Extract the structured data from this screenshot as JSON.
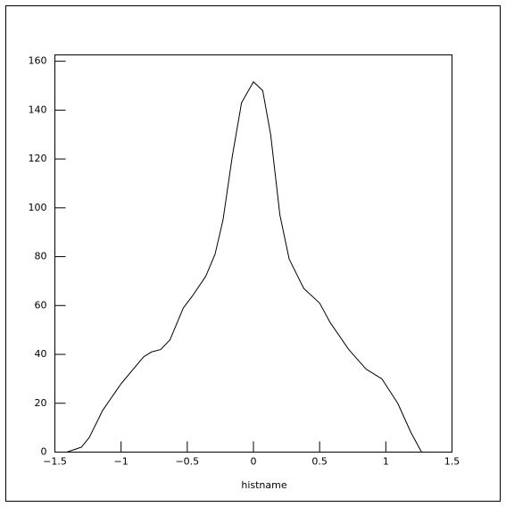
{
  "chart_data": {
    "type": "line",
    "x_label": "histname",
    "x": [
      -1.41,
      -1.3,
      -1.24,
      -1.14,
      -1.0,
      -0.83,
      -0.77,
      -0.7,
      -0.63,
      -0.53,
      -0.46,
      -0.36,
      -0.29,
      -0.23,
      -0.16,
      -0.09,
      0.0,
      0.07,
      0.13,
      0.2,
      0.27,
      0.38,
      0.5,
      0.58,
      0.72,
      0.85,
      0.97,
      1.09,
      1.19,
      1.27
    ],
    "series": [
      {
        "color": "#000000",
        "values": [
          0,
          2,
          6,
          17,
          28,
          39,
          41,
          42,
          46,
          59,
          64,
          72,
          81,
          95,
          121,
          143,
          151.6,
          148,
          130,
          97,
          79,
          67,
          61,
          53,
          42,
          34,
          30,
          20,
          8,
          0
        ]
      }
    ],
    "xlim": [
      -1.5,
      1.5
    ],
    "xticks": [
      {
        "value": -1.5,
        "label": "−1.5"
      },
      {
        "value": -1,
        "label": "−1"
      },
      {
        "value": -0.5,
        "label": "−0.5"
      },
      0,
      0.5,
      1,
      1.5
    ],
    "ylim": [
      0,
      162.6
    ],
    "yticks": [
      0,
      20,
      40,
      60,
      80,
      100,
      120,
      140,
      160
    ],
    "grid": false
  }
}
